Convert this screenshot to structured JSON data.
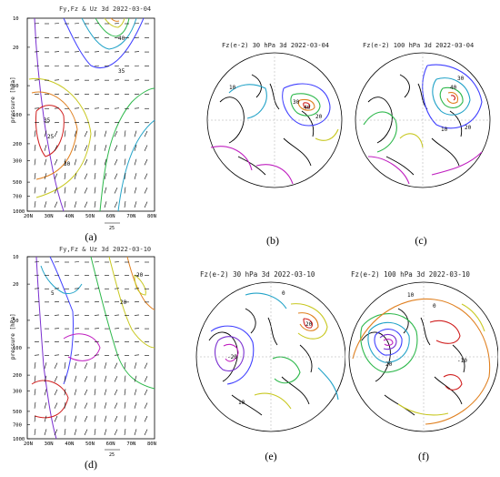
{
  "panels": {
    "a": {
      "title": "Fy,Fz & Uz 3d 2022-03-04",
      "caption": "(a)",
      "scale_label": "25",
      "contour_labels": [
        "40",
        "35",
        "30",
        "25",
        "20",
        "15",
        "10",
        "35",
        "25",
        "30",
        "5",
        "10"
      ]
    },
    "b": {
      "title": "Fz(e-2) 30 hPa 3d 2022-03-04",
      "caption": "(b)",
      "contour_labels": [
        "10",
        "30",
        "40",
        "20",
        "20",
        "10",
        "0",
        "-10"
      ]
    },
    "c": {
      "title": "Fz(e-2) 100 hPa 3d 2022-03-04",
      "caption": "(c)",
      "contour_labels": [
        "40",
        "30",
        "20",
        "10",
        "10",
        "0",
        "20"
      ]
    },
    "d": {
      "title": "Fy,Fz & Uz 3d 2022-03-10",
      "caption": "(d)",
      "scale_label": "25",
      "contour_labels": [
        "20",
        "5",
        "-5",
        "-10",
        "-5",
        "10",
        "15",
        "20",
        "10",
        "-15",
        "20"
      ]
    },
    "e": {
      "title": "Fz(e-2) 30 hPa 3d 2022-03-10",
      "caption": "(e)",
      "contour_labels": [
        "0",
        "10",
        "-10",
        "20",
        "-20",
        "-10",
        "10",
        "0"
      ]
    },
    "f": {
      "title": "Fz(e-2) 100 hPa 3d 2022-03-10",
      "caption": "(f)",
      "contour_labels": [
        "10",
        "0",
        "-10",
        "20",
        "-10",
        "10",
        "0",
        "0"
      ]
    }
  },
  "axes": {
    "ylabel": "pressure [hPa]",
    "yticks": [
      "10",
      "20",
      "50",
      "100",
      "200",
      "300",
      "500",
      "700",
      "1000"
    ],
    "xticks": [
      "20N",
      "30N",
      "40N",
      "50N",
      "60N",
      "70N",
      "80N"
    ]
  }
}
